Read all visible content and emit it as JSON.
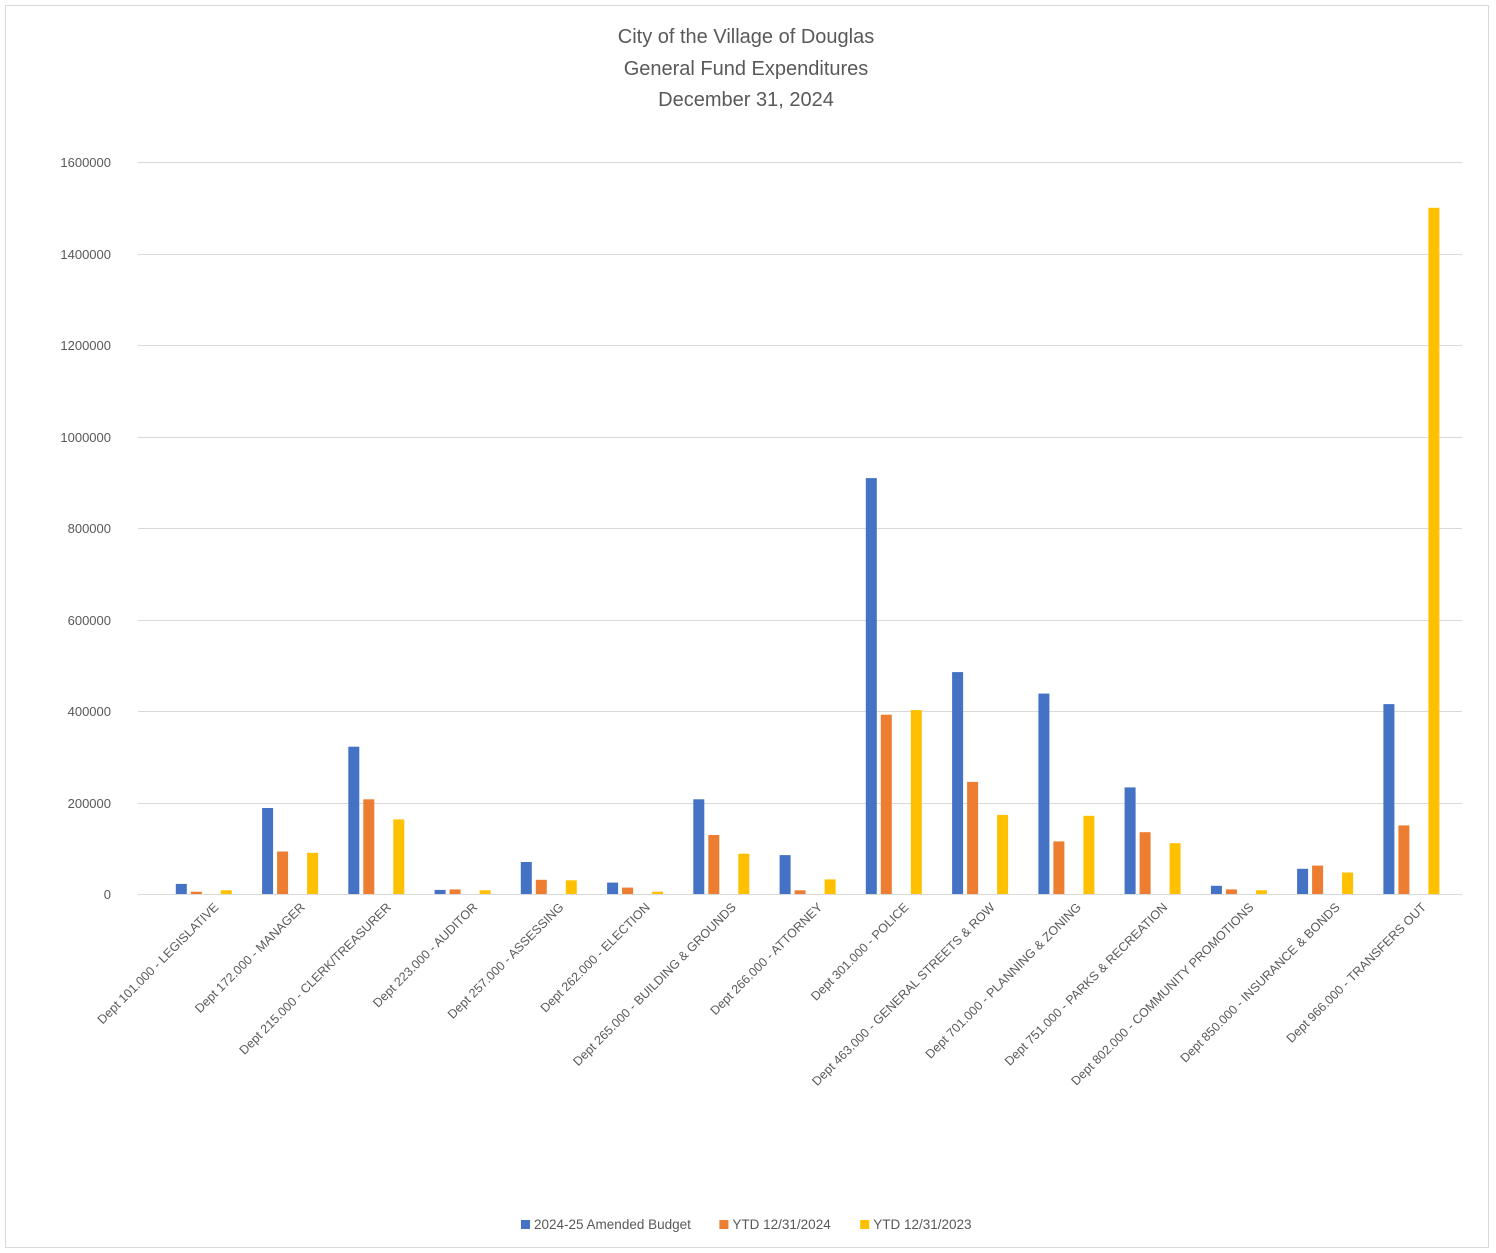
{
  "chart_data": {
    "type": "bar",
    "title": [
      "City of the Village of Douglas",
      "General Fund Expenditures",
      "December 31, 2024"
    ],
    "xlabel": "",
    "ylabel": "",
    "ylim": [
      0,
      1600000
    ],
    "y_ticks": [
      0,
      200000,
      400000,
      600000,
      800000,
      1000000,
      1200000,
      1400000,
      1600000
    ],
    "y_tick_labels": [
      "0",
      "200000",
      "400000",
      "600000",
      "800000",
      "1000000",
      "1200000",
      "1400000",
      "1600000"
    ],
    "grid": true,
    "legend_position": "bottom",
    "categories": [
      "Dept 101.000 - LEGISLATIVE",
      "Dept 172.000 - MANAGER",
      "Dept 215.000 - CLERK/TREASURER",
      "Dept 223.000 - AUDITOR",
      "Dept 257.000 - ASSESSING",
      "Dept 262.000 - ELECTION",
      "Dept 265.000 - BUILDING & GROUNDS",
      "Dept 266.000 - ATTORNEY",
      "Dept 301.000 - POLICE",
      "Dept 463.000 - GENERAL STREETS & ROW",
      "Dept 701.000 - PLANNING & ZONING",
      "Dept 751.000 - PARKS & RECREATION",
      "Dept 802.000 - COMMUNITY PROMOTIONS",
      "Dept 850.000 - INSURANCE & BONDS",
      "Dept 966.000 - TRANSFERS OUT"
    ],
    "series": [
      {
        "name": "2024-25 Amended Budget",
        "color": "#4472C4",
        "values": [
          22000,
          188000,
          322000,
          9000,
          70000,
          25000,
          207000,
          85000,
          909000,
          485000,
          438000,
          233000,
          18000,
          55000,
          415000
        ]
      },
      {
        "name": "YTD 12/31/2024",
        "color": "#ED7D31",
        "values": [
          5000,
          93000,
          207000,
          10000,
          31000,
          14000,
          129000,
          8000,
          392000,
          245000,
          115000,
          135000,
          10000,
          62000,
          150000
        ]
      },
      {
        "name": "YTD 12/31/2023",
        "color": "#FFC000",
        "values": [
          8000,
          90000,
          163000,
          8000,
          30000,
          5000,
          88000,
          32000,
          402000,
          173000,
          171000,
          111000,
          8000,
          47000,
          1500000
        ]
      }
    ]
  }
}
